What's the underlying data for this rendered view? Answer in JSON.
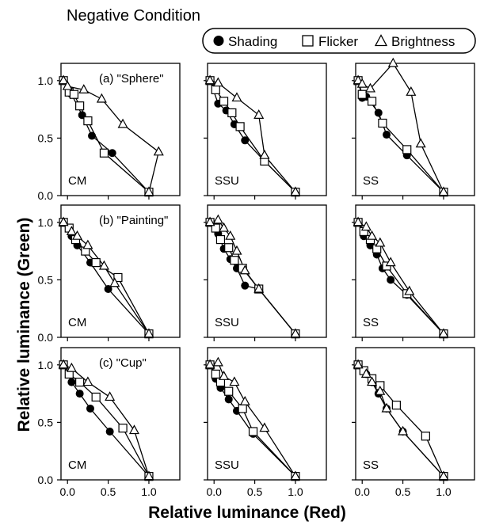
{
  "figure": {
    "title": "Negative Condition",
    "xlabel": "Relative luminance (Red)",
    "ylabel": "Relative luminance (Green)",
    "legend": [
      {
        "name": "Shading",
        "marker": "filled-circle"
      },
      {
        "name": "Flicker",
        "marker": "open-square"
      },
      {
        "name": "Brightness",
        "marker": "open-triangle"
      }
    ],
    "legend_placement": "top-right",
    "row_labels": [
      "(a) \"Sphere\"",
      "(b) \"Painting\"",
      "(c) \"Cup\""
    ],
    "column_labels": [
      "CM",
      "SSU",
      "SS"
    ],
    "x_ticks": [
      "0.0",
      "0.5",
      "1.0"
    ],
    "y_ticks": [
      "0.0",
      "0.5",
      "1.0"
    ]
  },
  "chart_data": [
    {
      "type": "line",
      "row": 0,
      "col": 0,
      "panel_label": "CM",
      "xlim": [
        -0.08,
        1.38
      ],
      "ylim": [
        0,
        1.15
      ],
      "series": [
        {
          "name": "Shading",
          "x": [
            -0.05,
            0.05,
            0.18,
            0.3,
            0.55,
            1.0
          ],
          "y": [
            1.0,
            0.88,
            0.7,
            0.52,
            0.37,
            0.03
          ]
        },
        {
          "name": "Flicker",
          "x": [
            -0.05,
            0.02,
            0.08,
            0.15,
            0.25,
            0.45,
            1.0
          ],
          "y": [
            1.0,
            0.9,
            0.88,
            0.78,
            0.65,
            0.37,
            0.03
          ]
        },
        {
          "name": "Brightness",
          "x": [
            -0.05,
            0.0,
            0.2,
            0.42,
            0.68,
            1.12,
            1.0
          ],
          "y": [
            1.0,
            0.95,
            0.92,
            0.84,
            0.62,
            0.38,
            0.03
          ]
        }
      ]
    },
    {
      "type": "line",
      "row": 0,
      "col": 1,
      "panel_label": "SSU",
      "xlim": [
        -0.08,
        1.38
      ],
      "ylim": [
        0,
        1.15
      ],
      "series": [
        {
          "name": "Shading",
          "x": [
            -0.05,
            0.05,
            0.15,
            0.25,
            0.38,
            0.62,
            1.0
          ],
          "y": [
            1.0,
            0.8,
            0.74,
            0.62,
            0.48,
            0.3,
            0.03
          ]
        },
        {
          "name": "Flicker",
          "x": [
            -0.05,
            0.02,
            0.12,
            0.22,
            0.32,
            0.62,
            1.0
          ],
          "y": [
            1.0,
            0.92,
            0.82,
            0.72,
            0.6,
            0.3,
            0.03
          ]
        },
        {
          "name": "Brightness",
          "x": [
            -0.05,
            0.05,
            0.28,
            0.55,
            0.62,
            1.0
          ],
          "y": [
            1.0,
            0.98,
            0.85,
            0.7,
            0.35,
            0.03
          ]
        }
      ]
    },
    {
      "type": "line",
      "row": 0,
      "col": 2,
      "panel_label": "SS",
      "xlim": [
        -0.08,
        1.38
      ],
      "ylim": [
        0,
        1.15
      ],
      "series": [
        {
          "name": "Shading",
          "x": [
            -0.05,
            0.0,
            0.05,
            0.2,
            0.3,
            0.55,
            1.0
          ],
          "y": [
            1.0,
            0.85,
            0.86,
            0.72,
            0.53,
            0.35,
            0.03
          ]
        },
        {
          "name": "Flicker",
          "x": [
            -0.05,
            0.0,
            0.12,
            0.25,
            0.55,
            1.0
          ],
          "y": [
            1.0,
            0.88,
            0.82,
            0.63,
            0.4,
            0.03
          ]
        },
        {
          "name": "Brightness",
          "x": [
            -0.05,
            0.0,
            0.1,
            0.38,
            0.6,
            0.72,
            1.0
          ],
          "y": [
            1.0,
            0.97,
            0.93,
            1.15,
            0.9,
            0.45,
            0.03
          ]
        }
      ]
    },
    {
      "type": "line",
      "row": 1,
      "col": 0,
      "panel_label": "CM",
      "xlim": [
        -0.08,
        1.38
      ],
      "ylim": [
        0,
        1.15
      ],
      "series": [
        {
          "name": "Shading",
          "x": [
            -0.05,
            0.05,
            0.12,
            0.28,
            0.5,
            1.0
          ],
          "y": [
            1.0,
            0.88,
            0.8,
            0.65,
            0.42,
            0.03
          ]
        },
        {
          "name": "Flicker",
          "x": [
            -0.05,
            0.02,
            0.1,
            0.22,
            0.35,
            0.62,
            1.0
          ],
          "y": [
            1.0,
            0.95,
            0.85,
            0.75,
            0.65,
            0.52,
            0.03
          ]
        },
        {
          "name": "Brightness",
          "x": [
            -0.05,
            0.05,
            0.12,
            0.25,
            0.45,
            0.58,
            1.0
          ],
          "y": [
            1.0,
            0.92,
            0.88,
            0.8,
            0.62,
            0.47,
            0.03
          ]
        }
      ]
    },
    {
      "type": "line",
      "row": 1,
      "col": 1,
      "panel_label": "SSU",
      "xlim": [
        -0.08,
        1.38
      ],
      "ylim": [
        0,
        1.15
      ],
      "series": [
        {
          "name": "Shading",
          "x": [
            -0.05,
            0.05,
            0.12,
            0.2,
            0.28,
            0.38,
            0.55,
            1.0
          ],
          "y": [
            1.0,
            0.9,
            0.77,
            0.68,
            0.6,
            0.45,
            0.42,
            0.03
          ]
        },
        {
          "name": "Flicker",
          "x": [
            -0.05,
            0.02,
            0.08,
            0.18,
            0.25,
            0.35,
            0.55,
            1.0
          ],
          "y": [
            1.0,
            0.95,
            0.85,
            0.78,
            0.67,
            0.6,
            0.42,
            0.03
          ]
        },
        {
          "name": "Brightness",
          "x": [
            -0.05,
            0.05,
            0.12,
            0.2,
            0.28,
            0.38,
            0.55,
            1.0
          ],
          "y": [
            1.0,
            1.02,
            0.95,
            0.88,
            0.75,
            0.58,
            0.42,
            0.03
          ]
        }
      ]
    },
    {
      "type": "line",
      "row": 1,
      "col": 2,
      "panel_label": "SS",
      "xlim": [
        -0.08,
        1.38
      ],
      "ylim": [
        0,
        1.15
      ],
      "series": [
        {
          "name": "Shading",
          "x": [
            -0.05,
            0.02,
            0.1,
            0.18,
            0.25,
            0.35,
            0.55,
            1.0
          ],
          "y": [
            1.0,
            0.88,
            0.8,
            0.72,
            0.6,
            0.5,
            0.37,
            0.03
          ]
        },
        {
          "name": "Flicker",
          "x": [
            -0.05,
            0.02,
            0.1,
            0.18,
            0.3,
            0.55,
            1.0
          ],
          "y": [
            1.0,
            0.92,
            0.85,
            0.77,
            0.62,
            0.38,
            0.03
          ]
        },
        {
          "name": "Brightness",
          "x": [
            -0.05,
            0.05,
            0.12,
            0.22,
            0.35,
            0.58,
            1.0
          ],
          "y": [
            1.0,
            0.96,
            0.88,
            0.82,
            0.65,
            0.4,
            0.03
          ]
        }
      ]
    },
    {
      "type": "line",
      "row": 2,
      "col": 0,
      "panel_label": "CM",
      "xlim": [
        -0.08,
        1.38
      ],
      "ylim": [
        0,
        1.15
      ],
      "series": [
        {
          "name": "Shading",
          "x": [
            -0.05,
            0.05,
            0.15,
            0.28,
            0.52,
            1.0
          ],
          "y": [
            1.0,
            0.85,
            0.75,
            0.62,
            0.42,
            0.03
          ]
        },
        {
          "name": "Flicker",
          "x": [
            -0.05,
            0.02,
            0.15,
            0.35,
            0.68,
            1.0
          ],
          "y": [
            1.0,
            0.92,
            0.85,
            0.72,
            0.45,
            0.03
          ]
        },
        {
          "name": "Brightness",
          "x": [
            -0.05,
            0.05,
            0.25,
            0.52,
            0.82,
            1.0
          ],
          "y": [
            1.0,
            0.97,
            0.85,
            0.72,
            0.43,
            0.03
          ]
        }
      ]
    },
    {
      "type": "line",
      "row": 2,
      "col": 1,
      "panel_label": "SSU",
      "xlim": [
        -0.08,
        1.38
      ],
      "ylim": [
        0,
        1.15
      ],
      "series": [
        {
          "name": "Shading",
          "x": [
            -0.05,
            0.02,
            0.08,
            0.18,
            0.28,
            0.48,
            1.0
          ],
          "y": [
            1.0,
            0.88,
            0.8,
            0.7,
            0.6,
            0.4,
            0.03
          ]
        },
        {
          "name": "Flicker",
          "x": [
            -0.05,
            0.02,
            0.08,
            0.18,
            0.35,
            0.48,
            1.0
          ],
          "y": [
            1.0,
            0.92,
            0.85,
            0.77,
            0.62,
            0.42,
            0.03
          ]
        },
        {
          "name": "Brightness",
          "x": [
            -0.05,
            0.05,
            0.12,
            0.25,
            0.38,
            0.62,
            1.0
          ],
          "y": [
            1.0,
            1.02,
            0.9,
            0.85,
            0.68,
            0.45,
            0.03
          ]
        }
      ]
    },
    {
      "type": "line",
      "row": 2,
      "col": 2,
      "panel_label": "SS",
      "xlim": [
        -0.08,
        1.38
      ],
      "ylim": [
        0,
        1.15
      ],
      "series": [
        {
          "name": "Shading",
          "x": [
            -0.05,
            0.05,
            0.12,
            0.2,
            0.3,
            0.5,
            1.0
          ],
          "y": [
            1.0,
            0.92,
            0.85,
            0.75,
            0.62,
            0.42,
            0.03
          ]
        },
        {
          "name": "Flicker",
          "x": [
            -0.05,
            0.02,
            0.12,
            0.22,
            0.42,
            0.78,
            1.0
          ],
          "y": [
            1.0,
            0.95,
            0.88,
            0.82,
            0.65,
            0.38,
            0.03
          ]
        },
        {
          "name": "Brightness",
          "x": [
            -0.05,
            0.05,
            0.12,
            0.22,
            0.3,
            0.5,
            1.0
          ],
          "y": [
            1.0,
            0.92,
            0.85,
            0.77,
            0.62,
            0.42,
            0.03
          ]
        }
      ]
    }
  ]
}
